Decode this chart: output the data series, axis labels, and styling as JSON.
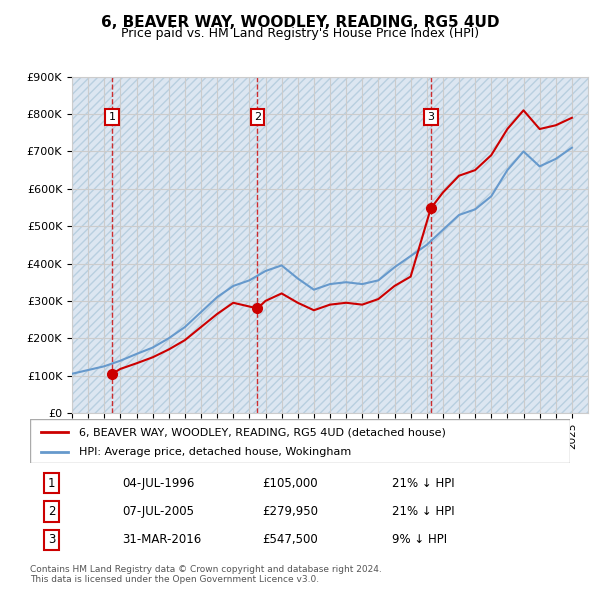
{
  "title": "6, BEAVER WAY, WOODLEY, READING, RG5 4UD",
  "subtitle": "Price paid vs. HM Land Registry's House Price Index (HPI)",
  "ylabel_ticks": [
    "£0",
    "£100K",
    "£200K",
    "£300K",
    "£400K",
    "£500K",
    "£600K",
    "£700K",
    "£800K",
    "£900K"
  ],
  "ytick_values": [
    0,
    100000,
    200000,
    300000,
    400000,
    500000,
    600000,
    700000,
    800000,
    900000
  ],
  "xmin": 1994.0,
  "xmax": 2026.0,
  "ymin": 0,
  "ymax": 900000,
  "sale_dates": [
    1996.5,
    2005.5,
    2016.25
  ],
  "sale_prices": [
    105000,
    279950,
    547500
  ],
  "sale_labels": [
    "1",
    "2",
    "3"
  ],
  "red_line_color": "#cc0000",
  "blue_line_color": "#6699cc",
  "dot_color": "#cc0000",
  "dashed_line_color": "#cc0000",
  "hpi_color": "#6699cc",
  "background_hatch_color": "#dce6f1",
  "grid_color": "#cccccc",
  "legend_entries": [
    "6, BEAVER WAY, WOODLEY, READING, RG5 4UD (detached house)",
    "HPI: Average price, detached house, Wokingham"
  ],
  "table_rows": [
    {
      "num": "1",
      "date": "04-JUL-1996",
      "price": "£105,000",
      "note": "21% ↓ HPI"
    },
    {
      "num": "2",
      "date": "07-JUL-2005",
      "price": "£279,950",
      "note": "21% ↓ HPI"
    },
    {
      "num": "3",
      "date": "31-MAR-2016",
      "price": "£547,500",
      "note": "9% ↓ HPI"
    }
  ],
  "footer": "Contains HM Land Registry data © Crown copyright and database right 2024.\nThis data is licensed under the Open Government Licence v3.0.",
  "hpi_years": [
    1994,
    1995,
    1996,
    1997,
    1998,
    1999,
    2000,
    2001,
    2002,
    2003,
    2004,
    2005,
    2006,
    2007,
    2008,
    2009,
    2010,
    2011,
    2012,
    2013,
    2014,
    2015,
    2016,
    2017,
    2018,
    2019,
    2020,
    2021,
    2022,
    2023,
    2024,
    2025
  ],
  "hpi_values": [
    105000,
    115000,
    125000,
    140000,
    158000,
    175000,
    200000,
    230000,
    270000,
    310000,
    340000,
    355000,
    380000,
    395000,
    360000,
    330000,
    345000,
    350000,
    345000,
    355000,
    390000,
    420000,
    450000,
    490000,
    530000,
    545000,
    580000,
    650000,
    700000,
    660000,
    680000,
    710000
  ],
  "price_line_years": [
    1996.5,
    1997,
    1998,
    1999,
    2000,
    2001,
    2002,
    2003,
    2004,
    2005.5,
    2006,
    2007,
    2008,
    2009,
    2010,
    2011,
    2012,
    2013,
    2014,
    2015,
    2016.25,
    2017,
    2018,
    2019,
    2020,
    2021,
    2022,
    2023,
    2024,
    2025
  ],
  "price_line_values": [
    105000,
    118000,
    133000,
    149000,
    170000,
    195000,
    230000,
    265000,
    295000,
    279950,
    300000,
    320000,
    295000,
    275000,
    290000,
    295000,
    290000,
    305000,
    340000,
    365000,
    547500,
    590000,
    635000,
    650000,
    690000,
    760000,
    810000,
    760000,
    770000,
    790000
  ]
}
